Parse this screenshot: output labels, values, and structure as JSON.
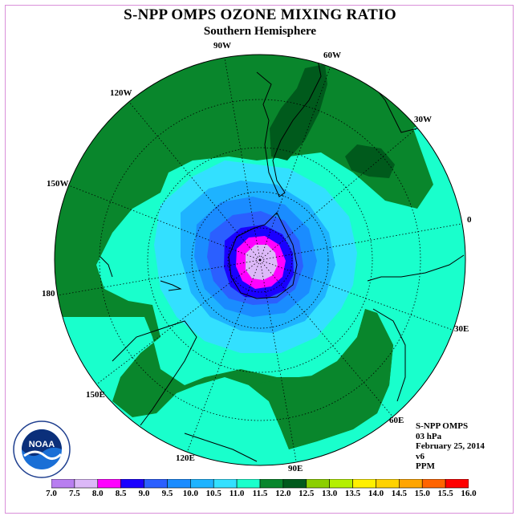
{
  "title": "S-NPP OMPS OZONE MIXING RATIO",
  "subtitle": "Southern Hemisphere",
  "longitude_labels": {
    "w90": "90W",
    "w60": "60W",
    "w30": "30W",
    "e0": "0",
    "e30": "30E",
    "e60": "60E",
    "e90": "90E",
    "e120": "120E",
    "e150": "150E",
    "l180": "180",
    "w150": "150W",
    "w120": "120W"
  },
  "info": {
    "instrument": "S-NPP OMPS",
    "level": "03 hPa",
    "date": "February 25, 2014",
    "version": "v6",
    "units": "PPM"
  },
  "logo": {
    "text": "NOAA",
    "ring_text": "NATIONAL OCEANIC AND ATMOSPHERIC ADMINISTRATION · U.S. DEPARTMENT OF COMMERCE"
  },
  "colorbar": {
    "ticks": [
      "7.0",
      "7.5",
      "8.0",
      "8.5",
      "9.0",
      "9.5",
      "10.0",
      "10.5",
      "11.0",
      "11.5",
      "12.0",
      "12.5",
      "13.0",
      "13.5",
      "14.0",
      "14.5",
      "15.0",
      "15.5",
      "16.0"
    ],
    "colors": [
      "#b87ef0",
      "#dcb8f8",
      "#ff00ff",
      "#1a00ff",
      "#2b5fff",
      "#1a8cff",
      "#1eb3ff",
      "#33e0ff",
      "#1aff cc",
      "#08862c",
      "#005a1c",
      "#8ccf00",
      "#b4f000",
      "#fff000",
      "#ffd200",
      "#ffa500",
      "#ff6400",
      "#ff0000",
      "#8c5028"
    ]
  }
}
